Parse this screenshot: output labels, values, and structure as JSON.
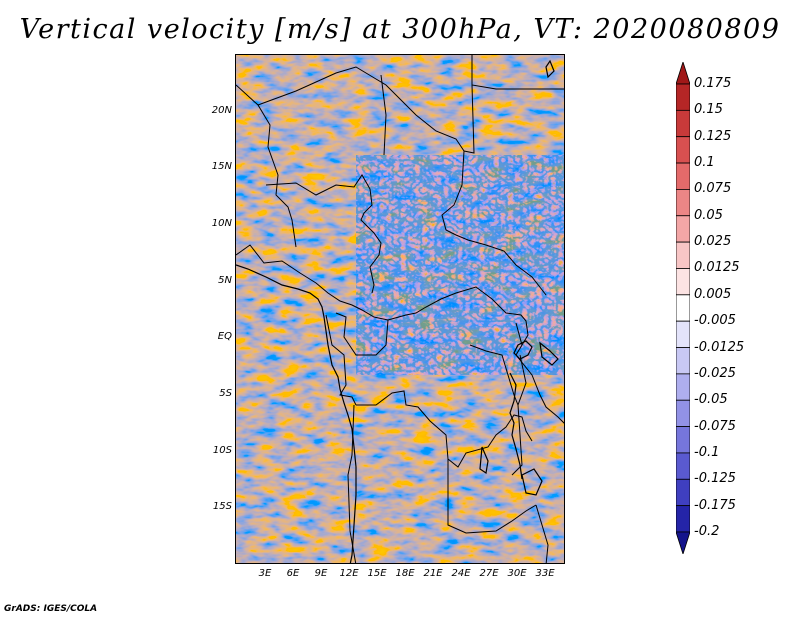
{
  "title": "Vertical velocity [m/s] at 300hPa, VT: 2020080809",
  "footer": "GrADS: IGES/COLA",
  "map": {
    "region": "Central Africa",
    "lat_labels": [
      "20N",
      "15N",
      "10N",
      "5N",
      "EQ",
      "5S",
      "10S",
      "15S"
    ],
    "lon_labels": [
      "3E",
      "6E",
      "9E",
      "12E",
      "15E",
      "18E",
      "21E",
      "24E",
      "27E",
      "30E",
      "33E"
    ],
    "lat_range": [
      -20,
      25
    ],
    "lon_range": [
      0,
      35
    ]
  },
  "colorbar": {
    "labels": [
      "0.175",
      "0.15",
      "0.125",
      "0.1",
      "0.075",
      "0.05",
      "0.025",
      "0.0125",
      "0.005",
      "-0.005",
      "-0.0125",
      "-0.025",
      "-0.05",
      "-0.075",
      "-0.1",
      "-0.125",
      "-0.175",
      "-0.2"
    ],
    "colors": [
      "#a01818",
      "#b52626",
      "#c83a3a",
      "#d85050",
      "#e46a6a",
      "#ec8686",
      "#f3a6a6",
      "#f8c6c6",
      "#fce3e3",
      "#ffffff",
      "#e3e3fa",
      "#c8c8f4",
      "#aeaeee",
      "#9292e6",
      "#7676dc",
      "#5a5ad0",
      "#3f3fc0",
      "#2424a8",
      "#14148c"
    ]
  }
}
